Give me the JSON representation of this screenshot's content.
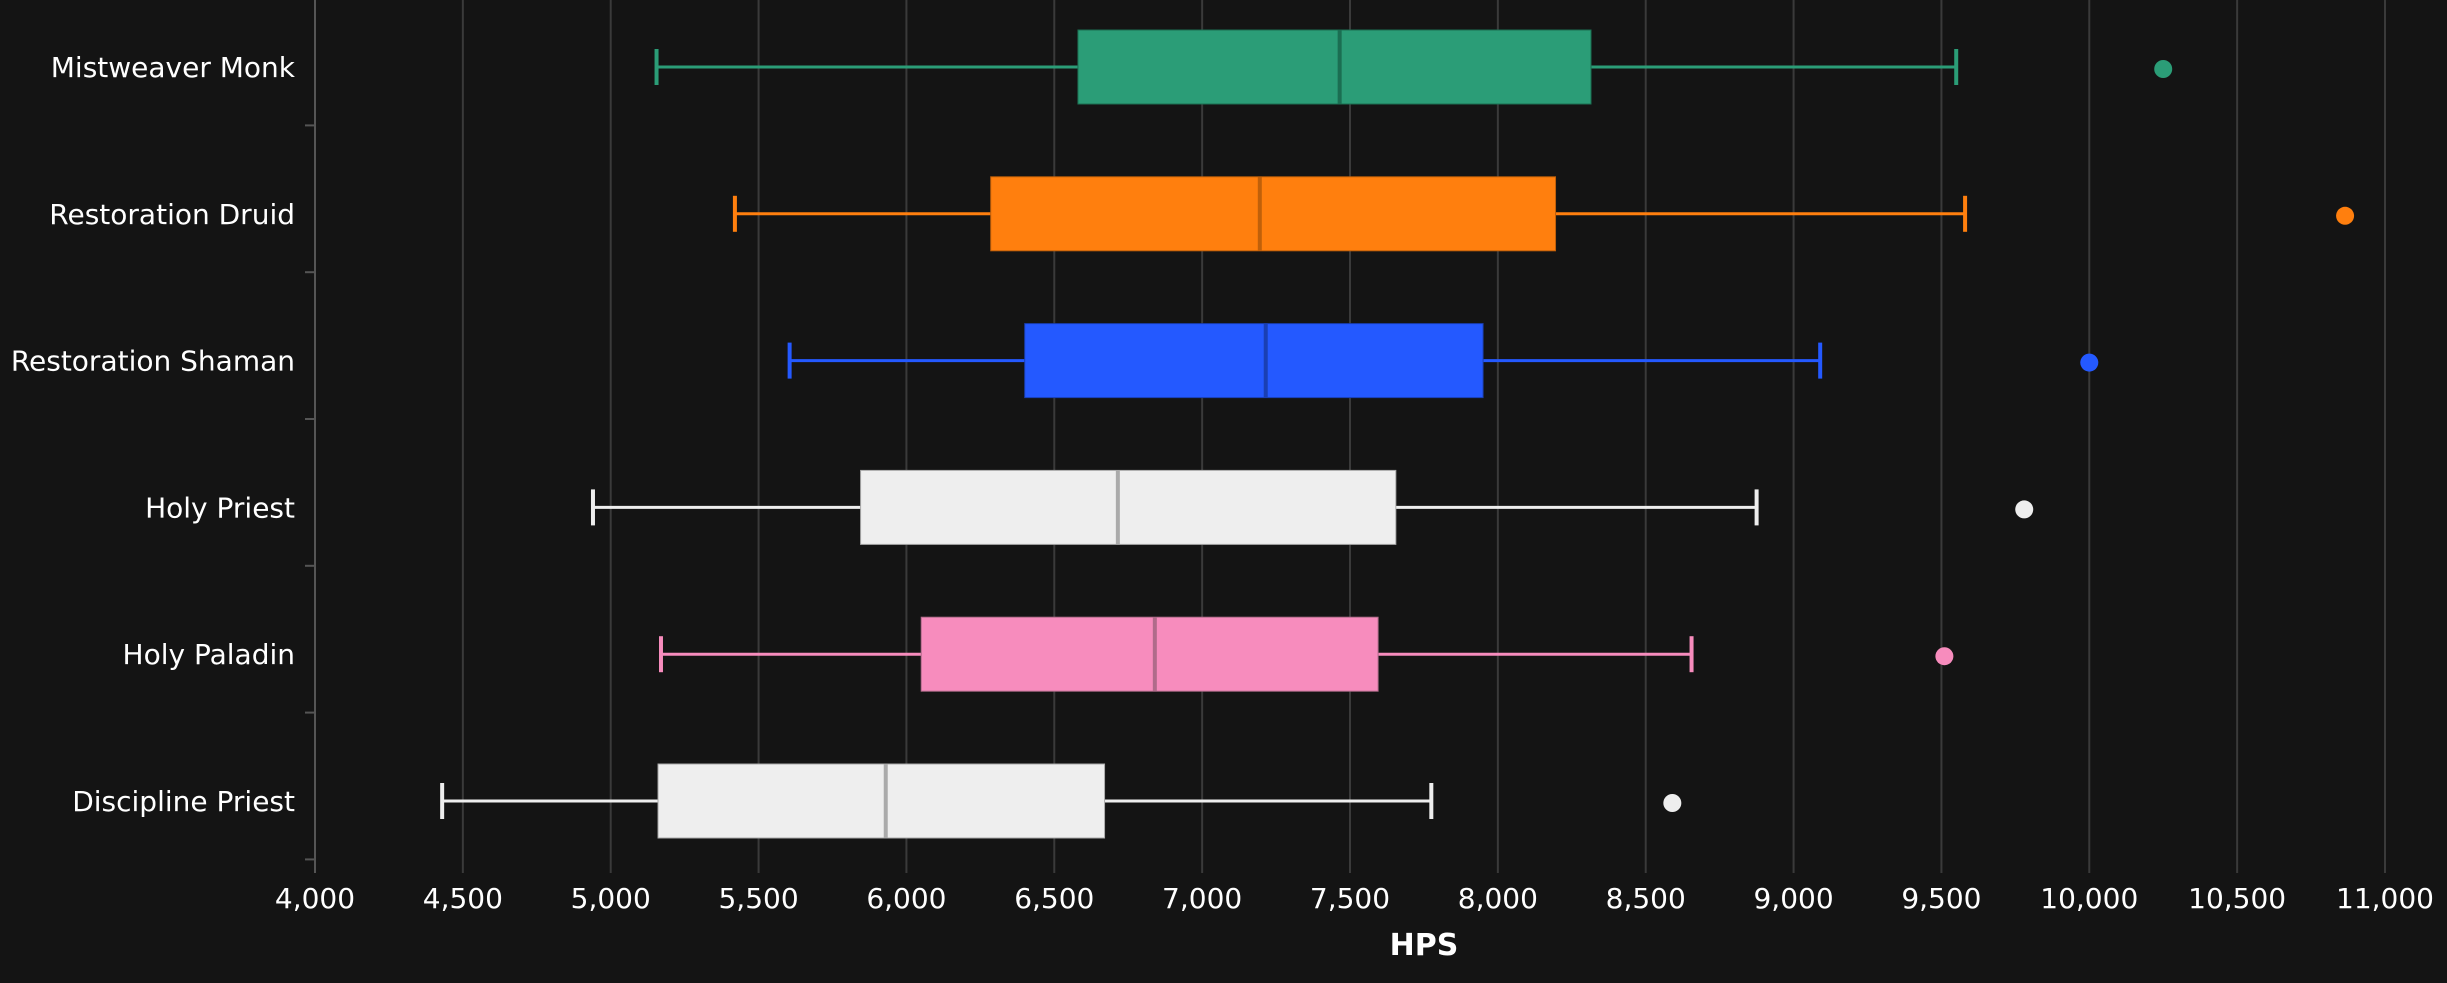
{
  "chart_data": {
    "type": "boxplot",
    "orientation": "horizontal",
    "title": "",
    "xlabel": "HPS",
    "ylabel": "",
    "xlim": [
      4000,
      11000
    ],
    "x_ticks": [
      4000,
      4500,
      5000,
      5500,
      6000,
      6500,
      7000,
      7500,
      8000,
      8500,
      9000,
      9500,
      10000,
      10500,
      11000
    ],
    "x_tick_labels": [
      "4,000",
      "4,500",
      "5,000",
      "5,500",
      "6,000",
      "6,500",
      "7,000",
      "7,500",
      "8,000",
      "8,500",
      "9,000",
      "9,500",
      "10,000",
      "10,500",
      "11,000"
    ],
    "grid": "vertical",
    "legend": "none",
    "background": "#141414",
    "series": [
      {
        "category": "Mistweaver Monk",
        "color": "#2b9d77",
        "median_color": "#1b6e52",
        "whisker_low": 5155,
        "q1": 6580,
        "median": 7465,
        "q3": 8315,
        "whisker_high": 9550,
        "outliers": [
          10250
        ]
      },
      {
        "category": "Restoration Druid",
        "color": "#ff7f0e",
        "median_color": "#c0600a",
        "whisker_low": 5420,
        "q1": 6285,
        "median": 7195,
        "q3": 8195,
        "whisker_high": 9580,
        "outliers": [
          10865
        ]
      },
      {
        "category": "Restoration Shaman",
        "color": "#2459ff",
        "median_color": "#1a3fb3",
        "whisker_low": 5605,
        "q1": 6400,
        "median": 7215,
        "q3": 7950,
        "whisker_high": 9090,
        "outliers": [
          10000
        ]
      },
      {
        "category": "Holy Priest",
        "color": "#eeeeee",
        "median_color": "#aaaaaa",
        "whisker_low": 4940,
        "q1": 5845,
        "median": 6715,
        "q3": 7655,
        "whisker_high": 8875,
        "outliers": [
          9780
        ]
      },
      {
        "category": "Holy Paladin",
        "color": "#f78cbd",
        "median_color": "#b06b8a",
        "whisker_low": 5170,
        "q1": 6050,
        "median": 6840,
        "q3": 7595,
        "whisker_high": 8655,
        "outliers": [
          9510
        ]
      },
      {
        "category": "Discipline Priest",
        "color": "#eeeeee",
        "median_color": "#aaaaaa",
        "whisker_low": 4430,
        "q1": 5160,
        "median": 5930,
        "q3": 6670,
        "whisker_high": 7775,
        "outliers": [
          8590
        ]
      }
    ]
  }
}
